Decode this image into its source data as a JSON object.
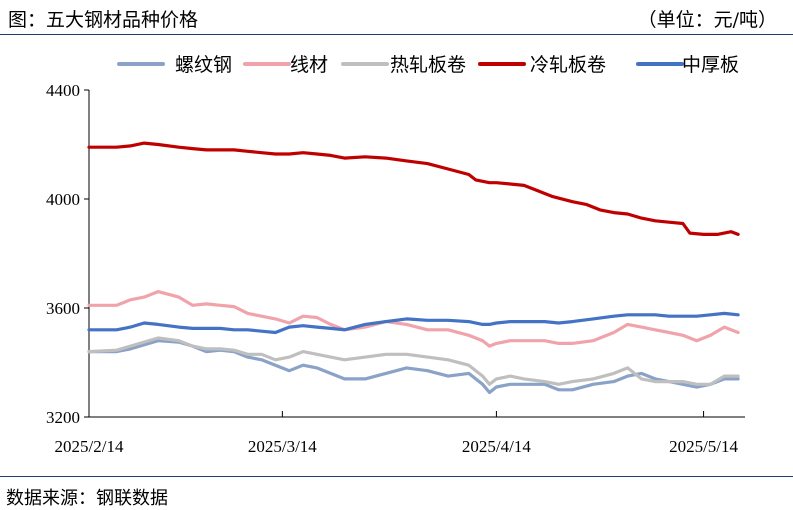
{
  "header": {
    "title": "图：五大钢材品种价格",
    "unit": "（单位：元/吨）"
  },
  "footer": {
    "source": "数据来源：钢联数据"
  },
  "chart_data": {
    "type": "line",
    "title": "图：五大钢材品种价格",
    "unit_label": "（单位：元/吨）",
    "ylim": [
      3200,
      4400
    ],
    "yticks": [
      3200,
      3600,
      4000,
      4400
    ],
    "xlim": [
      "2025-02-14",
      "2025-05-20"
    ],
    "xticks": [
      {
        "date": "2025-02-14",
        "label": "2025/2/14"
      },
      {
        "date": "2025-03-14",
        "label": "2025/3/14"
      },
      {
        "date": "2025-04-14",
        "label": "2025/4/14"
      },
      {
        "date": "2025-05-14",
        "label": "2025/5/14"
      }
    ],
    "grid": false,
    "legend_position": "top",
    "series": [
      {
        "name": "螺纹钢",
        "color": "#8aa2c8",
        "points": [
          [
            "2025-02-14",
            3440
          ],
          [
            "2025-02-18",
            3440
          ],
          [
            "2025-02-20",
            3450
          ],
          [
            "2025-02-24",
            3480
          ],
          [
            "2025-02-27",
            3475
          ],
          [
            "2025-03-01",
            3460
          ],
          [
            "2025-03-03",
            3440
          ],
          [
            "2025-03-05",
            3445
          ],
          [
            "2025-03-07",
            3440
          ],
          [
            "2025-03-09",
            3420
          ],
          [
            "2025-03-11",
            3410
          ],
          [
            "2025-03-13",
            3390
          ],
          [
            "2025-03-15",
            3370
          ],
          [
            "2025-03-17",
            3390
          ],
          [
            "2025-03-19",
            3380
          ],
          [
            "2025-03-21",
            3360
          ],
          [
            "2025-03-23",
            3340
          ],
          [
            "2025-03-26",
            3340
          ],
          [
            "2025-03-29",
            3360
          ],
          [
            "2025-04-01",
            3380
          ],
          [
            "2025-04-04",
            3370
          ],
          [
            "2025-04-07",
            3350
          ],
          [
            "2025-04-10",
            3360
          ],
          [
            "2025-04-12",
            3320
          ],
          [
            "2025-04-13",
            3290
          ],
          [
            "2025-04-14",
            3310
          ],
          [
            "2025-04-16",
            3320
          ],
          [
            "2025-04-18",
            3320
          ],
          [
            "2025-04-21",
            3320
          ],
          [
            "2025-04-23",
            3300
          ],
          [
            "2025-04-25",
            3300
          ],
          [
            "2025-04-28",
            3320
          ],
          [
            "2025-05-01",
            3330
          ],
          [
            "2025-05-03",
            3350
          ],
          [
            "2025-05-05",
            3360
          ],
          [
            "2025-05-07",
            3340
          ],
          [
            "2025-05-09",
            3330
          ],
          [
            "2025-05-11",
            3320
          ],
          [
            "2025-05-13",
            3310
          ],
          [
            "2025-05-15",
            3320
          ],
          [
            "2025-05-17",
            3340
          ],
          [
            "2025-05-19",
            3340
          ]
        ]
      },
      {
        "name": "线材",
        "color": "#f0a3ab",
        "points": [
          [
            "2025-02-14",
            3610
          ],
          [
            "2025-02-18",
            3610
          ],
          [
            "2025-02-20",
            3630
          ],
          [
            "2025-02-22",
            3640
          ],
          [
            "2025-02-24",
            3660
          ],
          [
            "2025-02-27",
            3640
          ],
          [
            "2025-03-01",
            3610
          ],
          [
            "2025-03-03",
            3615
          ],
          [
            "2025-03-05",
            3610
          ],
          [
            "2025-03-07",
            3605
          ],
          [
            "2025-03-09",
            3580
          ],
          [
            "2025-03-11",
            3570
          ],
          [
            "2025-03-13",
            3560
          ],
          [
            "2025-03-15",
            3545
          ],
          [
            "2025-03-17",
            3570
          ],
          [
            "2025-03-19",
            3565
          ],
          [
            "2025-03-21",
            3540
          ],
          [
            "2025-03-23",
            3520
          ],
          [
            "2025-03-26",
            3530
          ],
          [
            "2025-03-29",
            3550
          ],
          [
            "2025-04-01",
            3540
          ],
          [
            "2025-04-04",
            3520
          ],
          [
            "2025-04-07",
            3520
          ],
          [
            "2025-04-10",
            3500
          ],
          [
            "2025-04-12",
            3480
          ],
          [
            "2025-04-13",
            3460
          ],
          [
            "2025-04-14",
            3470
          ],
          [
            "2025-04-16",
            3480
          ],
          [
            "2025-04-18",
            3480
          ],
          [
            "2025-04-21",
            3480
          ],
          [
            "2025-04-23",
            3470
          ],
          [
            "2025-04-25",
            3470
          ],
          [
            "2025-04-28",
            3480
          ],
          [
            "2025-05-01",
            3510
          ],
          [
            "2025-05-03",
            3540
          ],
          [
            "2025-05-05",
            3530
          ],
          [
            "2025-05-07",
            3520
          ],
          [
            "2025-05-09",
            3510
          ],
          [
            "2025-05-11",
            3500
          ],
          [
            "2025-05-13",
            3480
          ],
          [
            "2025-05-15",
            3500
          ],
          [
            "2025-05-17",
            3530
          ],
          [
            "2025-05-19",
            3510
          ]
        ]
      },
      {
        "name": "热轧板卷",
        "color": "#bfbfbf",
        "points": [
          [
            "2025-02-14",
            3440
          ],
          [
            "2025-02-18",
            3445
          ],
          [
            "2025-02-20",
            3460
          ],
          [
            "2025-02-24",
            3490
          ],
          [
            "2025-02-27",
            3480
          ],
          [
            "2025-03-01",
            3460
          ],
          [
            "2025-03-03",
            3450
          ],
          [
            "2025-03-05",
            3450
          ],
          [
            "2025-03-07",
            3445
          ],
          [
            "2025-03-09",
            3430
          ],
          [
            "2025-03-11",
            3430
          ],
          [
            "2025-03-13",
            3410
          ],
          [
            "2025-03-15",
            3420
          ],
          [
            "2025-03-17",
            3440
          ],
          [
            "2025-03-19",
            3430
          ],
          [
            "2025-03-21",
            3420
          ],
          [
            "2025-03-23",
            3410
          ],
          [
            "2025-03-26",
            3420
          ],
          [
            "2025-03-29",
            3430
          ],
          [
            "2025-04-01",
            3430
          ],
          [
            "2025-04-04",
            3420
          ],
          [
            "2025-04-07",
            3410
          ],
          [
            "2025-04-10",
            3390
          ],
          [
            "2025-04-12",
            3350
          ],
          [
            "2025-04-13",
            3320
          ],
          [
            "2025-04-14",
            3340
          ],
          [
            "2025-04-16",
            3350
          ],
          [
            "2025-04-18",
            3340
          ],
          [
            "2025-04-21",
            3330
          ],
          [
            "2025-04-23",
            3320
          ],
          [
            "2025-04-25",
            3330
          ],
          [
            "2025-04-28",
            3340
          ],
          [
            "2025-05-01",
            3360
          ],
          [
            "2025-05-03",
            3380
          ],
          [
            "2025-05-05",
            3340
          ],
          [
            "2025-05-07",
            3330
          ],
          [
            "2025-05-09",
            3330
          ],
          [
            "2025-05-11",
            3330
          ],
          [
            "2025-05-13",
            3320
          ],
          [
            "2025-05-15",
            3320
          ],
          [
            "2025-05-17",
            3350
          ],
          [
            "2025-05-19",
            3350
          ]
        ]
      },
      {
        "name": "冷轧板卷",
        "color": "#c00000",
        "points": [
          [
            "2025-02-14",
            4190
          ],
          [
            "2025-02-18",
            4190
          ],
          [
            "2025-02-20",
            4195
          ],
          [
            "2025-02-22",
            4205
          ],
          [
            "2025-02-24",
            4200
          ],
          [
            "2025-02-27",
            4190
          ],
          [
            "2025-03-01",
            4185
          ],
          [
            "2025-03-03",
            4180
          ],
          [
            "2025-03-05",
            4180
          ],
          [
            "2025-03-07",
            4180
          ],
          [
            "2025-03-09",
            4175
          ],
          [
            "2025-03-11",
            4170
          ],
          [
            "2025-03-13",
            4165
          ],
          [
            "2025-03-15",
            4165
          ],
          [
            "2025-03-17",
            4170
          ],
          [
            "2025-03-19",
            4165
          ],
          [
            "2025-03-21",
            4160
          ],
          [
            "2025-03-23",
            4150
          ],
          [
            "2025-03-26",
            4155
          ],
          [
            "2025-03-29",
            4150
          ],
          [
            "2025-04-01",
            4140
          ],
          [
            "2025-04-04",
            4130
          ],
          [
            "2025-04-07",
            4110
          ],
          [
            "2025-04-10",
            4090
          ],
          [
            "2025-04-11",
            4070
          ],
          [
            "2025-04-13",
            4060
          ],
          [
            "2025-04-14",
            4060
          ],
          [
            "2025-04-16",
            4055
          ],
          [
            "2025-04-18",
            4050
          ],
          [
            "2025-04-20",
            4030
          ],
          [
            "2025-04-22",
            4010
          ],
          [
            "2025-04-25",
            3990
          ],
          [
            "2025-04-27",
            3980
          ],
          [
            "2025-04-29",
            3960
          ],
          [
            "2025-05-01",
            3950
          ],
          [
            "2025-05-03",
            3945
          ],
          [
            "2025-05-05",
            3930
          ],
          [
            "2025-05-07",
            3920
          ],
          [
            "2025-05-09",
            3915
          ],
          [
            "2025-05-11",
            3910
          ],
          [
            "2025-05-12",
            3875
          ],
          [
            "2025-05-14",
            3870
          ],
          [
            "2025-05-16",
            3870
          ],
          [
            "2025-05-18",
            3880
          ],
          [
            "2025-05-19",
            3870
          ]
        ]
      },
      {
        "name": "中厚板",
        "color": "#4472c4",
        "points": [
          [
            "2025-02-14",
            3520
          ],
          [
            "2025-02-18",
            3520
          ],
          [
            "2025-02-20",
            3530
          ],
          [
            "2025-02-22",
            3545
          ],
          [
            "2025-02-24",
            3540
          ],
          [
            "2025-02-27",
            3530
          ],
          [
            "2025-03-01",
            3525
          ],
          [
            "2025-03-05",
            3525
          ],
          [
            "2025-03-07",
            3520
          ],
          [
            "2025-03-09",
            3520
          ],
          [
            "2025-03-11",
            3515
          ],
          [
            "2025-03-13",
            3510
          ],
          [
            "2025-03-15",
            3530
          ],
          [
            "2025-03-17",
            3535
          ],
          [
            "2025-03-19",
            3530
          ],
          [
            "2025-03-21",
            3525
          ],
          [
            "2025-03-23",
            3520
          ],
          [
            "2025-03-26",
            3540
          ],
          [
            "2025-03-29",
            3550
          ],
          [
            "2025-04-01",
            3560
          ],
          [
            "2025-04-04",
            3555
          ],
          [
            "2025-04-07",
            3555
          ],
          [
            "2025-04-10",
            3550
          ],
          [
            "2025-04-12",
            3540
          ],
          [
            "2025-04-13",
            3540
          ],
          [
            "2025-04-14",
            3545
          ],
          [
            "2025-04-16",
            3550
          ],
          [
            "2025-04-18",
            3550
          ],
          [
            "2025-04-21",
            3550
          ],
          [
            "2025-04-23",
            3545
          ],
          [
            "2025-04-25",
            3550
          ],
          [
            "2025-04-28",
            3560
          ],
          [
            "2025-05-01",
            3570
          ],
          [
            "2025-05-03",
            3575
          ],
          [
            "2025-05-05",
            3575
          ],
          [
            "2025-05-07",
            3575
          ],
          [
            "2025-05-09",
            3570
          ],
          [
            "2025-05-11",
            3570
          ],
          [
            "2025-05-13",
            3570
          ],
          [
            "2025-05-15",
            3575
          ],
          [
            "2025-05-17",
            3580
          ],
          [
            "2025-05-19",
            3575
          ]
        ]
      }
    ]
  }
}
